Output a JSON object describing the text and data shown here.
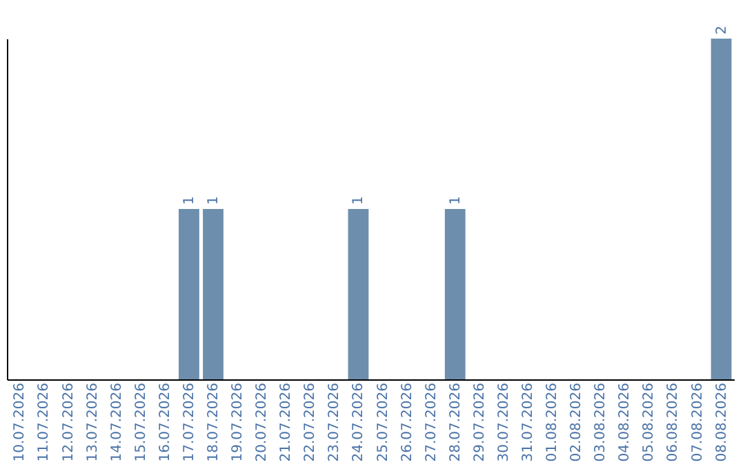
{
  "chart_data": {
    "type": "bar",
    "categories": [
      "10.07.2026",
      "11.07.2026",
      "12.07.2026",
      "13.07.2026",
      "14.07.2026",
      "15.07.2026",
      "16.07.2026",
      "17.07.2026",
      "18.07.2026",
      "19.07.2026",
      "20.07.2026",
      "21.07.2026",
      "22.07.2026",
      "23.07.2026",
      "24.07.2026",
      "25.07.2026",
      "26.07.2026",
      "27.07.2026",
      "28.07.2026",
      "29.07.2026",
      "30.07.2026",
      "31.07.2026",
      "01.08.2026",
      "02.08.2026",
      "03.08.2026",
      "04.08.2026",
      "05.08.2026",
      "06.08.2026",
      "07.08.2026",
      "08.08.2026"
    ],
    "values": [
      null,
      null,
      null,
      null,
      null,
      null,
      null,
      1,
      1,
      null,
      null,
      null,
      null,
      null,
      1,
      null,
      null,
      null,
      1,
      null,
      null,
      null,
      null,
      null,
      null,
      null,
      null,
      null,
      null,
      2
    ],
    "color": "#6d8fad",
    "data_labels": true,
    "tick_labels": "x",
    "grid": false
  }
}
